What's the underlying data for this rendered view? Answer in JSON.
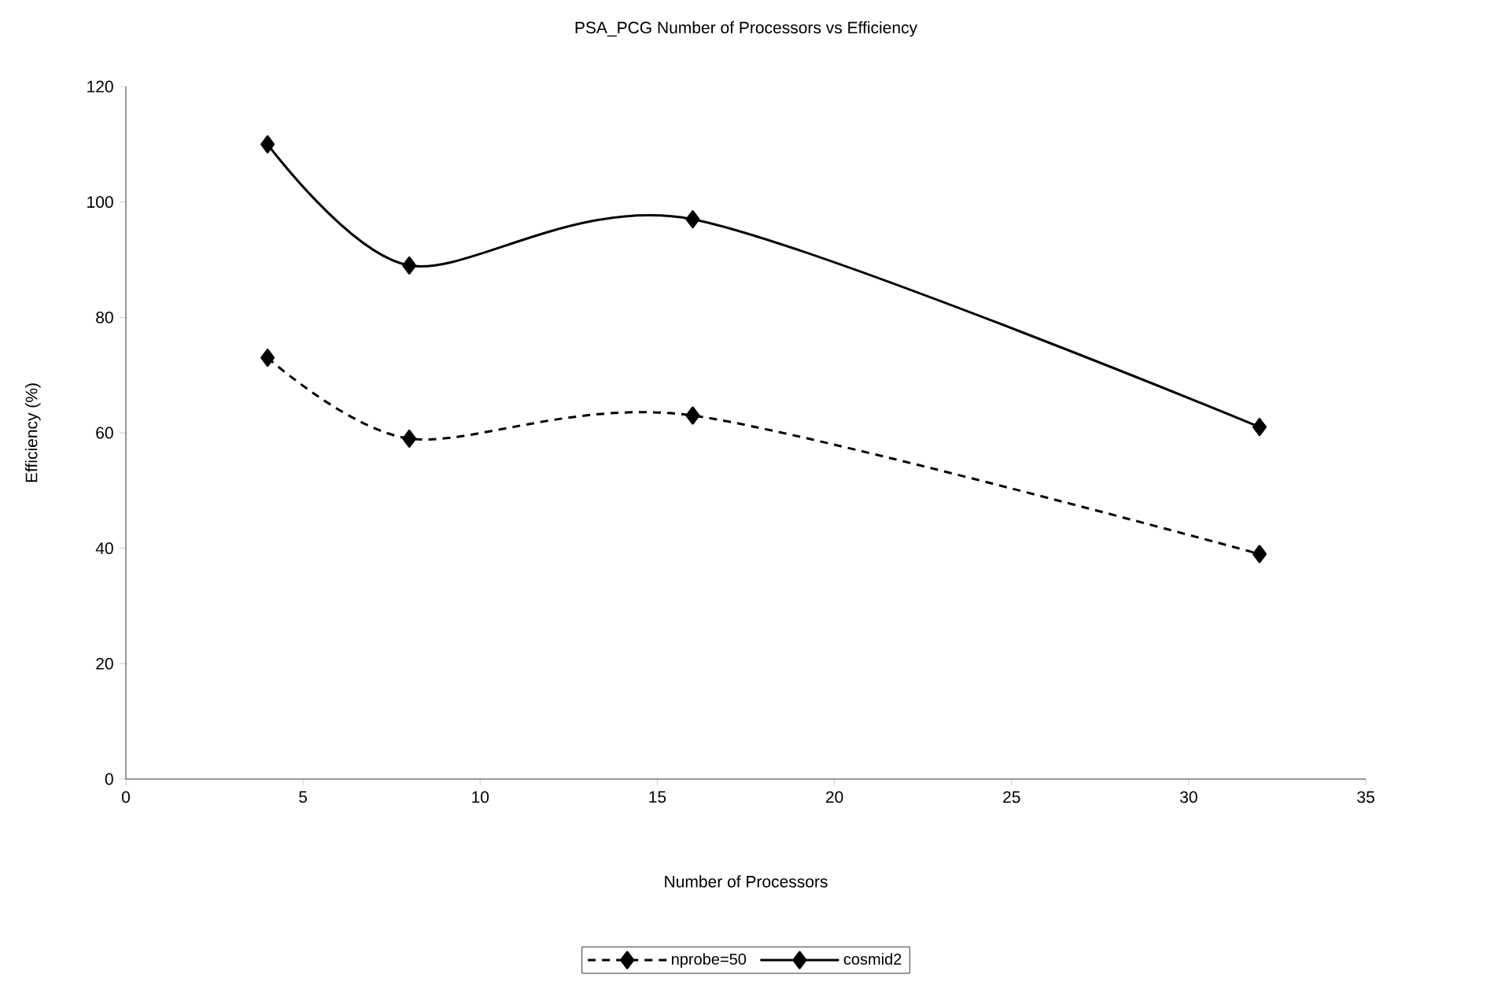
{
  "chart_data": {
    "type": "line",
    "title": "PSA_PCG Number of Processors vs Efficiency",
    "xlabel": "Number of Processors",
    "ylabel": "Efficiency (%)",
    "x": [
      4,
      8,
      16,
      32
    ],
    "series": [
      {
        "name": "nprobe=50",
        "color": "#000000",
        "line_style": "dashed",
        "values": [
          73,
          59,
          63,
          39
        ]
      },
      {
        "name": "cosmid2",
        "color": "#000000",
        "line_style": "solid",
        "values": [
          110,
          89,
          97,
          61
        ]
      }
    ],
    "xlim": [
      0,
      35
    ],
    "xticks": [
      0,
      5,
      10,
      15,
      20,
      25,
      30,
      35
    ],
    "ylim": [
      0,
      120
    ],
    "yticks": [
      0,
      20,
      40,
      60,
      80,
      100,
      120
    ],
    "grid": false,
    "legend": "bottom",
    "marker": "diamond"
  }
}
